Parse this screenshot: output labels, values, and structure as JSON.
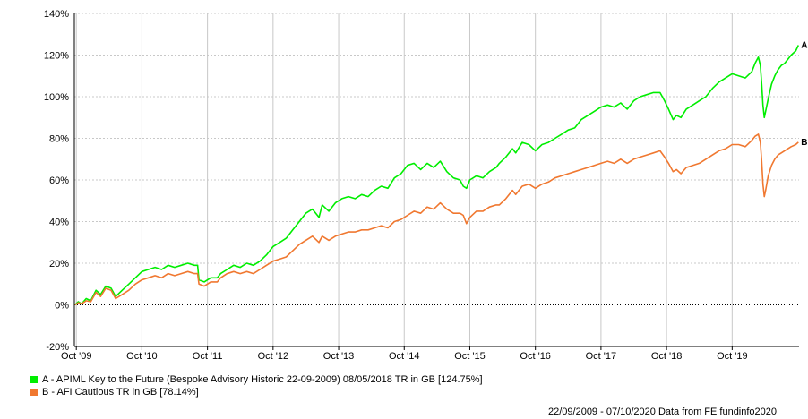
{
  "chart_data": {
    "type": "line",
    "x_ticks": [
      "Oct '09",
      "Oct '10",
      "Oct '11",
      "Oct '12",
      "Oct '13",
      "Oct '14",
      "Oct '15",
      "Oct '16",
      "Oct '17",
      "Oct '18",
      "Oct '19"
    ],
    "y_ticks": [
      "140%",
      "120%",
      "100%",
      "80%",
      "60%",
      "40%",
      "20%",
      "0%",
      "-20%"
    ],
    "ylim": [
      -20,
      140
    ],
    "xlim": [
      2009.72,
      2020.77
    ],
    "grid": true,
    "series": [
      {
        "name": "A - APIML Key to the Future (Bespoke Advisory Historic 22-09-2009) 08/05/2018 TR in GB [124.75%]",
        "end_label": "A",
        "color": "#00ee00",
        "points": [
          [
            2009.73,
            0
          ],
          [
            2009.78,
            1.5
          ],
          [
            2009.83,
            0.5
          ],
          [
            2009.9,
            3
          ],
          [
            2009.97,
            2
          ],
          [
            2010.05,
            7
          ],
          [
            2010.12,
            5
          ],
          [
            2010.2,
            9
          ],
          [
            2010.28,
            8
          ],
          [
            2010.35,
            4
          ],
          [
            2010.45,
            7
          ],
          [
            2010.55,
            10
          ],
          [
            2010.65,
            13
          ],
          [
            2010.75,
            16
          ],
          [
            2010.85,
            17
          ],
          [
            2010.95,
            18
          ],
          [
            2011.05,
            17
          ],
          [
            2011.15,
            19
          ],
          [
            2011.25,
            18
          ],
          [
            2011.35,
            19
          ],
          [
            2011.45,
            20
          ],
          [
            2011.55,
            19
          ],
          [
            2011.6,
            19
          ],
          [
            2011.62,
            12
          ],
          [
            2011.7,
            11
          ],
          [
            2011.8,
            13
          ],
          [
            2011.9,
            13
          ],
          [
            2011.95,
            15
          ],
          [
            2012.05,
            17
          ],
          [
            2012.15,
            19
          ],
          [
            2012.25,
            18
          ],
          [
            2012.35,
            20
          ],
          [
            2012.45,
            19
          ],
          [
            2012.55,
            21
          ],
          [
            2012.65,
            24
          ],
          [
            2012.75,
            28
          ],
          [
            2012.85,
            30
          ],
          [
            2012.95,
            32
          ],
          [
            2013.05,
            36
          ],
          [
            2013.15,
            40
          ],
          [
            2013.25,
            44
          ],
          [
            2013.35,
            46
          ],
          [
            2013.45,
            42
          ],
          [
            2013.5,
            48
          ],
          [
            2013.6,
            45
          ],
          [
            2013.7,
            49
          ],
          [
            2013.8,
            51
          ],
          [
            2013.9,
            52
          ],
          [
            2014.0,
            51
          ],
          [
            2014.1,
            53
          ],
          [
            2014.2,
            52
          ],
          [
            2014.3,
            55
          ],
          [
            2014.4,
            57
          ],
          [
            2014.5,
            56
          ],
          [
            2014.6,
            61
          ],
          [
            2014.7,
            63
          ],
          [
            2014.8,
            67
          ],
          [
            2014.9,
            68
          ],
          [
            2015.0,
            65
          ],
          [
            2015.1,
            68
          ],
          [
            2015.2,
            66
          ],
          [
            2015.3,
            69
          ],
          [
            2015.4,
            64
          ],
          [
            2015.5,
            61
          ],
          [
            2015.6,
            60
          ],
          [
            2015.65,
            57
          ],
          [
            2015.7,
            56
          ],
          [
            2015.75,
            60
          ],
          [
            2015.85,
            62
          ],
          [
            2015.95,
            61
          ],
          [
            2016.05,
            64
          ],
          [
            2016.15,
            66
          ],
          [
            2016.2,
            68
          ],
          [
            2016.3,
            71
          ],
          [
            2016.4,
            75
          ],
          [
            2016.45,
            73
          ],
          [
            2016.55,
            78
          ],
          [
            2016.65,
            77
          ],
          [
            2016.75,
            74
          ],
          [
            2016.85,
            77
          ],
          [
            2016.95,
            78
          ],
          [
            2017.05,
            80
          ],
          [
            2017.15,
            82
          ],
          [
            2017.25,
            84
          ],
          [
            2017.35,
            85
          ],
          [
            2017.45,
            89
          ],
          [
            2017.55,
            91
          ],
          [
            2017.65,
            93
          ],
          [
            2017.75,
            95
          ],
          [
            2017.85,
            96
          ],
          [
            2017.95,
            95
          ],
          [
            2018.05,
            97
          ],
          [
            2018.15,
            94
          ],
          [
            2018.25,
            98
          ],
          [
            2018.35,
            100
          ],
          [
            2018.45,
            101
          ],
          [
            2018.55,
            102
          ],
          [
            2018.65,
            102
          ],
          [
            2018.72,
            98
          ],
          [
            2018.78,
            94
          ],
          [
            2018.85,
            89
          ],
          [
            2018.9,
            91
          ],
          [
            2018.97,
            90
          ],
          [
            2019.05,
            94
          ],
          [
            2019.15,
            96
          ],
          [
            2019.25,
            98
          ],
          [
            2019.35,
            100
          ],
          [
            2019.45,
            104
          ],
          [
            2019.55,
            107
          ],
          [
            2019.65,
            109
          ],
          [
            2019.75,
            111
          ],
          [
            2019.85,
            110
          ],
          [
            2019.95,
            109
          ],
          [
            2020.05,
            112
          ],
          [
            2020.1,
            116
          ],
          [
            2020.15,
            119
          ],
          [
            2020.18,
            115
          ],
          [
            2020.2,
            106
          ],
          [
            2020.22,
            96
          ],
          [
            2020.24,
            90
          ],
          [
            2020.26,
            93
          ],
          [
            2020.3,
            99
          ],
          [
            2020.35,
            106
          ],
          [
            2020.4,
            110
          ],
          [
            2020.45,
            113
          ],
          [
            2020.5,
            115
          ],
          [
            2020.55,
            116
          ],
          [
            2020.6,
            118
          ],
          [
            2020.65,
            120
          ],
          [
            2020.72,
            122
          ],
          [
            2020.76,
            124.75
          ]
        ]
      },
      {
        "name": "B - AFI Cautious TR in GB [78.14%]",
        "end_label": "B",
        "color": "#f07830",
        "points": [
          [
            2009.73,
            0
          ],
          [
            2009.78,
            1
          ],
          [
            2009.83,
            0.5
          ],
          [
            2009.9,
            2
          ],
          [
            2009.97,
            1.5
          ],
          [
            2010.05,
            6
          ],
          [
            2010.12,
            4
          ],
          [
            2010.2,
            8
          ],
          [
            2010.28,
            7
          ],
          [
            2010.35,
            3
          ],
          [
            2010.45,
            5
          ],
          [
            2010.55,
            7
          ],
          [
            2010.65,
            10
          ],
          [
            2010.75,
            12
          ],
          [
            2010.85,
            13
          ],
          [
            2010.95,
            14
          ],
          [
            2011.05,
            13
          ],
          [
            2011.15,
            15
          ],
          [
            2011.25,
            14
          ],
          [
            2011.35,
            15
          ],
          [
            2011.45,
            16
          ],
          [
            2011.55,
            15
          ],
          [
            2011.6,
            15
          ],
          [
            2011.62,
            10
          ],
          [
            2011.7,
            9
          ],
          [
            2011.8,
            11
          ],
          [
            2011.9,
            11
          ],
          [
            2011.95,
            13
          ],
          [
            2012.05,
            15
          ],
          [
            2012.15,
            16
          ],
          [
            2012.25,
            15
          ],
          [
            2012.35,
            16
          ],
          [
            2012.45,
            15
          ],
          [
            2012.55,
            17
          ],
          [
            2012.65,
            19
          ],
          [
            2012.75,
            21
          ],
          [
            2012.85,
            22
          ],
          [
            2012.95,
            23
          ],
          [
            2013.05,
            26
          ],
          [
            2013.15,
            29
          ],
          [
            2013.25,
            31
          ],
          [
            2013.35,
            33
          ],
          [
            2013.45,
            30
          ],
          [
            2013.5,
            33
          ],
          [
            2013.6,
            31
          ],
          [
            2013.7,
            33
          ],
          [
            2013.8,
            34
          ],
          [
            2013.9,
            35
          ],
          [
            2014.0,
            35
          ],
          [
            2014.1,
            36
          ],
          [
            2014.2,
            36
          ],
          [
            2014.3,
            37
          ],
          [
            2014.4,
            38
          ],
          [
            2014.5,
            37
          ],
          [
            2014.6,
            40
          ],
          [
            2014.7,
            41
          ],
          [
            2014.8,
            43
          ],
          [
            2014.9,
            45
          ],
          [
            2015.0,
            44
          ],
          [
            2015.1,
            47
          ],
          [
            2015.2,
            46
          ],
          [
            2015.3,
            49
          ],
          [
            2015.4,
            46
          ],
          [
            2015.5,
            44
          ],
          [
            2015.6,
            44
          ],
          [
            2015.65,
            43
          ],
          [
            2015.7,
            39
          ],
          [
            2015.75,
            42
          ],
          [
            2015.85,
            45
          ],
          [
            2015.95,
            45
          ],
          [
            2016.05,
            47
          ],
          [
            2016.15,
            48
          ],
          [
            2016.2,
            48
          ],
          [
            2016.3,
            51
          ],
          [
            2016.4,
            55
          ],
          [
            2016.45,
            53
          ],
          [
            2016.55,
            57
          ],
          [
            2016.65,
            58
          ],
          [
            2016.75,
            56
          ],
          [
            2016.85,
            58
          ],
          [
            2016.95,
            59
          ],
          [
            2017.05,
            61
          ],
          [
            2017.15,
            62
          ],
          [
            2017.25,
            63
          ],
          [
            2017.35,
            64
          ],
          [
            2017.45,
            65
          ],
          [
            2017.55,
            66
          ],
          [
            2017.65,
            67
          ],
          [
            2017.75,
            68
          ],
          [
            2017.85,
            69
          ],
          [
            2017.95,
            68
          ],
          [
            2018.05,
            70
          ],
          [
            2018.15,
            68
          ],
          [
            2018.25,
            70
          ],
          [
            2018.35,
            71
          ],
          [
            2018.45,
            72
          ],
          [
            2018.55,
            73
          ],
          [
            2018.65,
            74
          ],
          [
            2018.72,
            71
          ],
          [
            2018.78,
            68
          ],
          [
            2018.85,
            64
          ],
          [
            2018.9,
            65
          ],
          [
            2018.97,
            63
          ],
          [
            2019.05,
            66
          ],
          [
            2019.15,
            67
          ],
          [
            2019.25,
            68
          ],
          [
            2019.35,
            70
          ],
          [
            2019.45,
            72
          ],
          [
            2019.55,
            74
          ],
          [
            2019.65,
            75
          ],
          [
            2019.75,
            77
          ],
          [
            2019.85,
            77
          ],
          [
            2019.95,
            76
          ],
          [
            2020.05,
            79
          ],
          [
            2020.1,
            81
          ],
          [
            2020.15,
            82
          ],
          [
            2020.18,
            78
          ],
          [
            2020.2,
            69
          ],
          [
            2020.22,
            58
          ],
          [
            2020.24,
            52
          ],
          [
            2020.26,
            55
          ],
          [
            2020.3,
            62
          ],
          [
            2020.35,
            67
          ],
          [
            2020.4,
            70
          ],
          [
            2020.45,
            72
          ],
          [
            2020.5,
            73
          ],
          [
            2020.55,
            74
          ],
          [
            2020.6,
            75
          ],
          [
            2020.65,
            76
          ],
          [
            2020.72,
            77
          ],
          [
            2020.76,
            78.14
          ]
        ]
      }
    ],
    "footer": "22/09/2009 - 07/10/2020 Data from FE fundinfo2020"
  }
}
